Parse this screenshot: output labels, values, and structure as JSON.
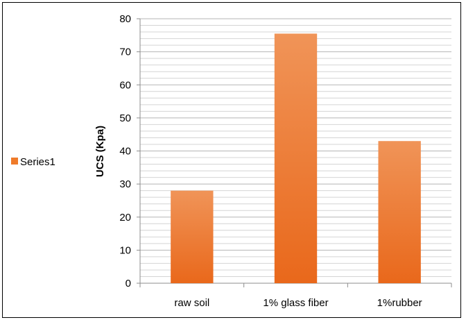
{
  "chart_data": {
    "type": "bar",
    "title": "",
    "xlabel": "",
    "ylabel": "UCS (Kpa)",
    "categories": [
      "raw soil",
      "1% glass fiber",
      "1%rubber"
    ],
    "series": [
      {
        "name": "Series1",
        "values": [
          28,
          75.5,
          43
        ]
      }
    ],
    "ylim": [
      0,
      80
    ],
    "y_major_ticks": [
      0,
      10,
      20,
      30,
      40,
      50,
      60,
      70,
      80
    ],
    "y_minor_step": 2,
    "grid": true,
    "legend": {
      "position": "left",
      "entries": [
        "Series1"
      ]
    },
    "bar_color": "#ef7b2a",
    "bar_gradient": [
      "#f09458",
      "#e9681b"
    ]
  }
}
